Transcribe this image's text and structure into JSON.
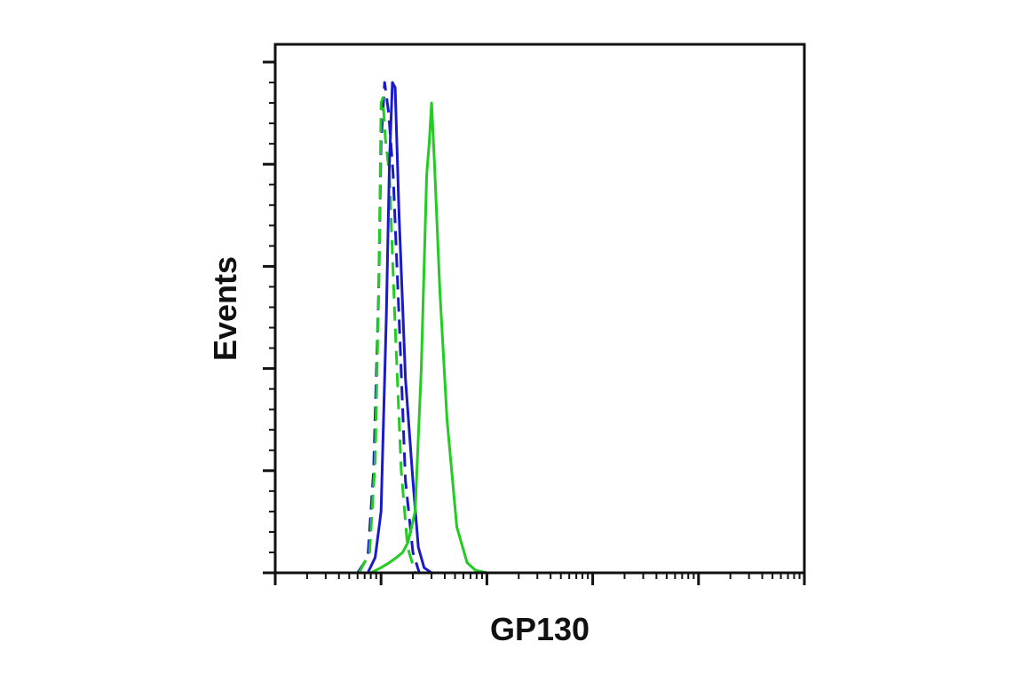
{
  "chart_data": {
    "type": "line",
    "title": "",
    "xlabel": "GP130",
    "ylabel": "Events",
    "x_scale": "log",
    "xlim": [
      10,
      1000000
    ],
    "ylim": [
      0,
      1
    ],
    "x_tick_labels_visible": false,
    "y_tick_labels_visible": false,
    "legend": "none",
    "series": [
      {
        "color": "#1a1ac8",
        "style": "dashed",
        "points": [
          [
            60,
            0
          ],
          [
            75,
            0.03
          ],
          [
            85,
            0.2
          ],
          [
            95,
            0.55
          ],
          [
            100,
            0.84
          ],
          [
            108,
            0.96
          ],
          [
            118,
            0.9
          ],
          [
            130,
            0.78
          ],
          [
            148,
            0.5
          ],
          [
            170,
            0.18
          ],
          [
            200,
            0.04
          ],
          [
            230,
            0
          ]
        ]
      },
      {
        "color": "#22cc22",
        "style": "dashed",
        "points": [
          [
            62,
            0
          ],
          [
            78,
            0.04
          ],
          [
            88,
            0.22
          ],
          [
            96,
            0.6
          ],
          [
            100,
            0.92
          ],
          [
            104,
            0.93
          ],
          [
            110,
            0.85
          ],
          [
            120,
            0.78
          ],
          [
            135,
            0.5
          ],
          [
            155,
            0.2
          ],
          [
            178,
            0.05
          ],
          [
            210,
            0
          ]
        ]
      },
      {
        "color": "#1a1ac8",
        "style": "solid",
        "points": [
          [
            75,
            0
          ],
          [
            88,
            0.03
          ],
          [
            100,
            0.12
          ],
          [
            112,
            0.5
          ],
          [
            120,
            0.8
          ],
          [
            128,
            0.96
          ],
          [
            136,
            0.95
          ],
          [
            148,
            0.7
          ],
          [
            170,
            0.38
          ],
          [
            200,
            0.18
          ],
          [
            225,
            0.05
          ],
          [
            255,
            0.01
          ],
          [
            300,
            0
          ]
        ]
      },
      {
        "color": "#22cc22",
        "style": "solid",
        "points": [
          [
            80,
            0
          ],
          [
            100,
            0.01
          ],
          [
            120,
            0.02
          ],
          [
            140,
            0.03
          ],
          [
            160,
            0.04
          ],
          [
            180,
            0.06
          ],
          [
            210,
            0.12
          ],
          [
            240,
            0.4
          ],
          [
            270,
            0.78
          ],
          [
            285,
            0.84
          ],
          [
            300,
            0.92
          ],
          [
            320,
            0.8
          ],
          [
            360,
            0.55
          ],
          [
            420,
            0.3
          ],
          [
            520,
            0.09
          ],
          [
            650,
            0.02
          ],
          [
            780,
            0.005
          ],
          [
            1000,
            0
          ],
          [
            1000000,
            0
          ]
        ]
      }
    ]
  }
}
